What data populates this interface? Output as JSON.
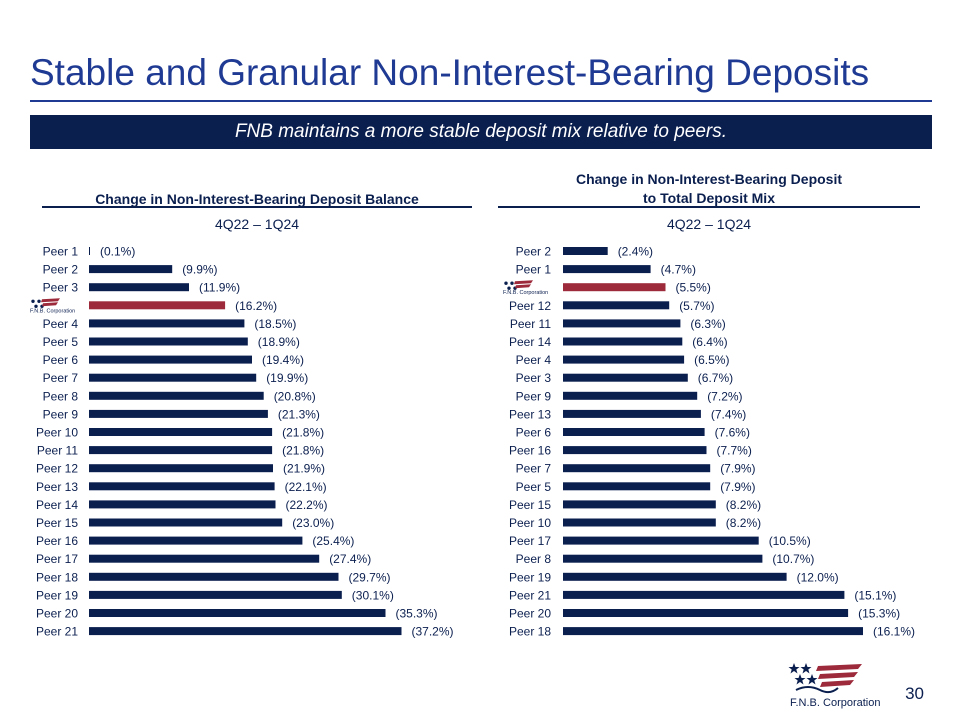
{
  "slide": {
    "title": "Stable and Granular Non-Interest-Bearing Deposits",
    "banner": "FNB maintains a more stable deposit mix relative to peers.",
    "page_number": "30",
    "logo_text": "F.N.B. Corporation",
    "colors": {
      "navy": "#0b1f4f",
      "highlight": "#9c2a3a",
      "title_blue": "#1f3a93"
    }
  },
  "chart_data": [
    {
      "type": "bar",
      "orientation": "horizontal",
      "title": "Change in Non-Interest-Bearing Deposit Balance",
      "subtitle": "4Q22 – 1Q24",
      "highlight_category": "FNB",
      "highlight_logo_text": "F.N.B. Corporation",
      "categories": [
        "Peer 1",
        "Peer 2",
        "Peer 3",
        "FNB",
        "Peer 4",
        "Peer 5",
        "Peer 6",
        "Peer 7",
        "Peer 8",
        "Peer 9",
        "Peer 10",
        "Peer 11",
        "Peer 12",
        "Peer 13",
        "Peer 14",
        "Peer 15",
        "Peer 16",
        "Peer 17",
        "Peer 18",
        "Peer 19",
        "Peer 20",
        "Peer 21"
      ],
      "values": [
        0.1,
        9.9,
        11.9,
        16.2,
        18.5,
        18.9,
        19.4,
        19.9,
        20.8,
        21.3,
        21.8,
        21.8,
        21.9,
        22.1,
        22.2,
        23.0,
        25.4,
        27.4,
        29.7,
        30.1,
        35.3,
        37.2
      ],
      "labels": [
        "(0.1%)",
        "(9.9%)",
        "(11.9%)",
        "(16.2%)",
        "(18.5%)",
        "(18.9%)",
        "(19.4%)",
        "(19.9%)",
        "(20.8%)",
        "(21.3%)",
        "(21.8%)",
        "(21.8%)",
        "(21.9%)",
        "(22.1%)",
        "(22.2%)",
        "(23.0%)",
        "(25.4%)",
        "(27.4%)",
        "(29.7%)",
        "(30.1%)",
        "(35.3%)",
        "(37.2%)"
      ],
      "xlim": [
        0,
        40
      ]
    },
    {
      "type": "bar",
      "orientation": "horizontal",
      "title_line1": "Change in Non-Interest-Bearing Deposit",
      "title_line2": "to Total Deposit Mix",
      "subtitle": "4Q22 – 1Q24",
      "highlight_category": "FNB",
      "highlight_logo_text": "F.N.B. Corporation",
      "categories": [
        "Peer 2",
        "Peer 1",
        "FNB",
        "Peer 12",
        "Peer 11",
        "Peer 14",
        "Peer 4",
        "Peer 3",
        "Peer 9",
        "Peer 13",
        "Peer 6",
        "Peer 16",
        "Peer 7",
        "Peer 5",
        "Peer 15",
        "Peer 10",
        "Peer 17",
        "Peer 8",
        "Peer 19",
        "Peer 21",
        "Peer 20",
        "Peer 18"
      ],
      "values": [
        2.4,
        4.7,
        5.5,
        5.7,
        6.3,
        6.4,
        6.5,
        6.7,
        7.2,
        7.4,
        7.6,
        7.7,
        7.9,
        7.9,
        8.2,
        8.2,
        10.5,
        10.7,
        12.0,
        15.1,
        15.3,
        16.1
      ],
      "labels": [
        "(2.4%)",
        "(4.7%)",
        "(5.5%)",
        "(5.7%)",
        "(6.3%)",
        "(6.4%)",
        "(6.5%)",
        "(6.7%)",
        "(7.2%)",
        "(7.4%)",
        "(7.6%)",
        "(7.7%)",
        "(7.9%)",
        "(7.9%)",
        "(8.2%)",
        "(8.2%)",
        "(10.5%)",
        "(10.7%)",
        "(12.0%)",
        "(15.1%)",
        "(15.3%)",
        "(16.1%)"
      ],
      "xlim": [
        0,
        16.1
      ]
    }
  ]
}
